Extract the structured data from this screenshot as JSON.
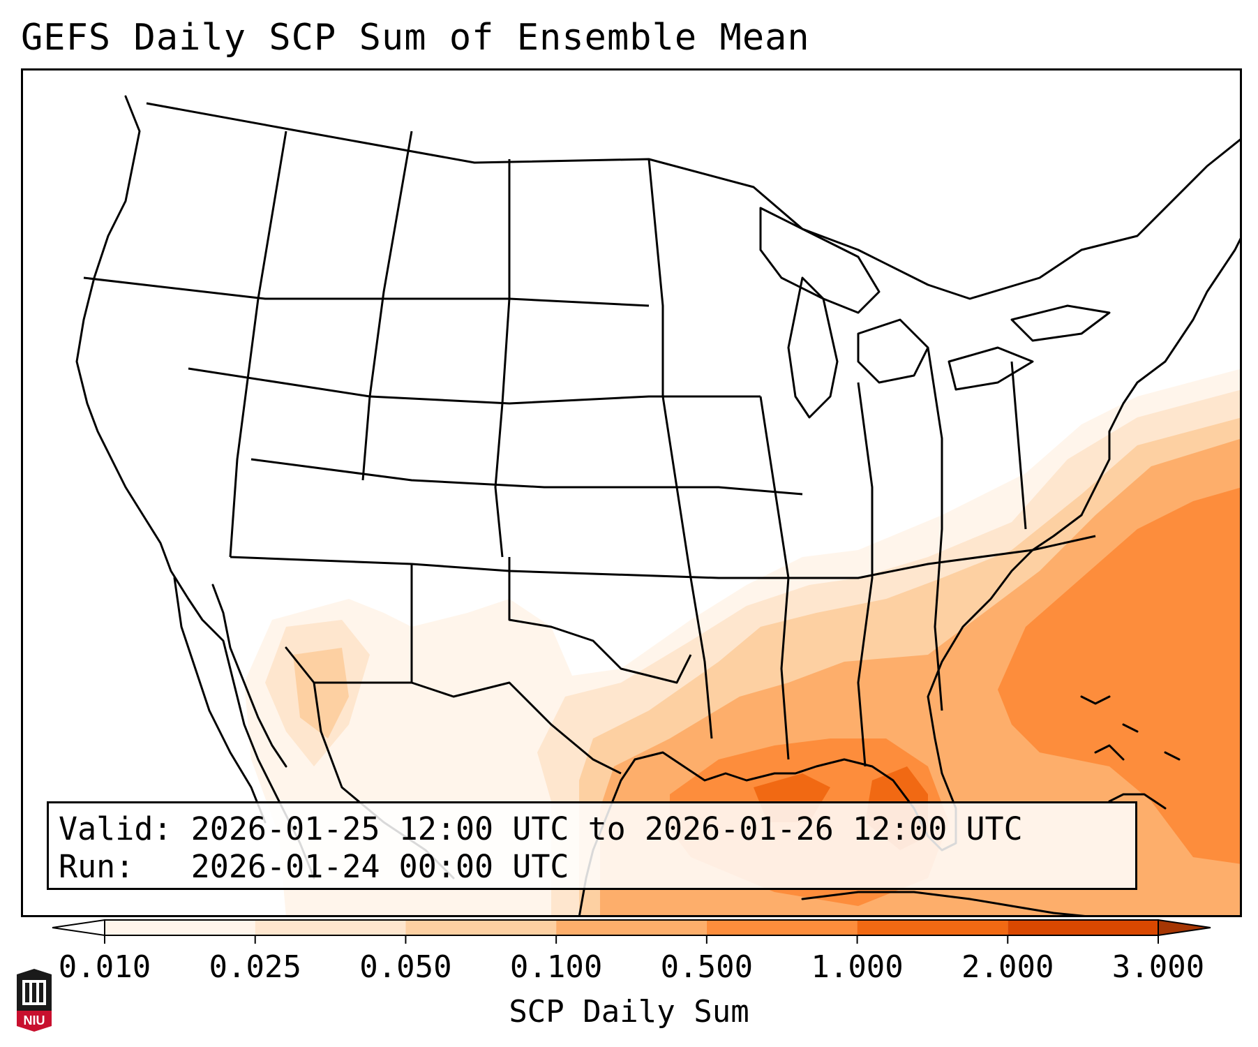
{
  "title": "GEFS Daily SCP Sum of Ensemble Mean",
  "map": {
    "region": "Contiguous United States, northern Mexico, Gulf of Mexico, western Atlantic",
    "shading_color_family": "orange",
    "max_shading_regions": [
      "Gulf of Mexico",
      "Western Atlantic off the Southeast coast",
      "Florida"
    ],
    "light_shading_regions": [
      "Northern Mexico / Texas-New Mexico border",
      "Gulf Coast states",
      "Southeast coast"
    ]
  },
  "info": {
    "valid_label": "Valid:",
    "valid_value": "2026-01-25 12:00 UTC to 2026-01-26 12:00 UTC",
    "run_label": "Run:",
    "run_value": "2026-01-24 00:00 UTC"
  },
  "colorbar": {
    "label": "SCP Daily Sum",
    "ticks": [
      "0.010",
      "0.025",
      "0.050",
      "0.100",
      "0.500",
      "1.000",
      "2.000",
      "3.000"
    ],
    "colors": [
      "#fff5eb",
      "#fee6ce",
      "#fdd0a2",
      "#fdae6b",
      "#fd8d3c",
      "#f16913",
      "#d94801",
      "#a63603"
    ],
    "extend": "both"
  },
  "logo": {
    "text": "NIU",
    "color": "#c8102e"
  }
}
